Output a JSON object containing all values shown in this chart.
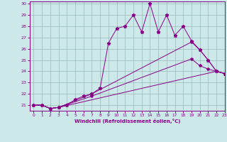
{
  "xlabel": "Windchill (Refroidissement éolien,°C)",
  "xlim": [
    -0.5,
    23
  ],
  "ylim": [
    20.5,
    30.2
  ],
  "xticks": [
    0,
    1,
    2,
    3,
    4,
    5,
    6,
    7,
    8,
    9,
    10,
    11,
    12,
    13,
    14,
    15,
    16,
    17,
    18,
    19,
    20,
    21,
    22,
    23
  ],
  "yticks": [
    21,
    22,
    23,
    24,
    25,
    26,
    27,
    28,
    29,
    30
  ],
  "bg_color": "#cce8e8",
  "line_color": "#880088",
  "grid_color": "#99bbbb",
  "lines": [
    {
      "x": [
        0,
        1,
        2,
        3,
        4,
        5,
        6,
        7,
        8,
        9,
        10,
        11,
        12,
        13,
        14,
        15,
        16,
        17,
        18,
        19,
        20,
        21,
        22,
        23
      ],
      "y": [
        21.0,
        21.0,
        20.7,
        20.8,
        21.0,
        21.5,
        21.8,
        22.0,
        22.5,
        26.5,
        27.8,
        28.0,
        29.0,
        27.5,
        30.0,
        27.5,
        29.0,
        27.2,
        28.0,
        26.7,
        25.9,
        25.0,
        24.0,
        23.8
      ]
    },
    {
      "x": [
        0,
        1,
        2,
        3,
        22,
        23
      ],
      "y": [
        21.0,
        21.0,
        20.7,
        20.8,
        24.0,
        23.8
      ]
    },
    {
      "x": [
        0,
        1,
        2,
        3,
        7,
        19,
        20,
        21,
        22,
        23
      ],
      "y": [
        21.0,
        21.0,
        20.7,
        20.8,
        22.0,
        26.6,
        25.9,
        25.0,
        24.0,
        23.8
      ]
    },
    {
      "x": [
        0,
        1,
        2,
        3,
        7,
        19,
        20,
        21,
        22,
        23
      ],
      "y": [
        21.0,
        21.0,
        20.7,
        20.8,
        21.8,
        25.1,
        24.5,
        24.2,
        24.0,
        23.8
      ]
    }
  ]
}
